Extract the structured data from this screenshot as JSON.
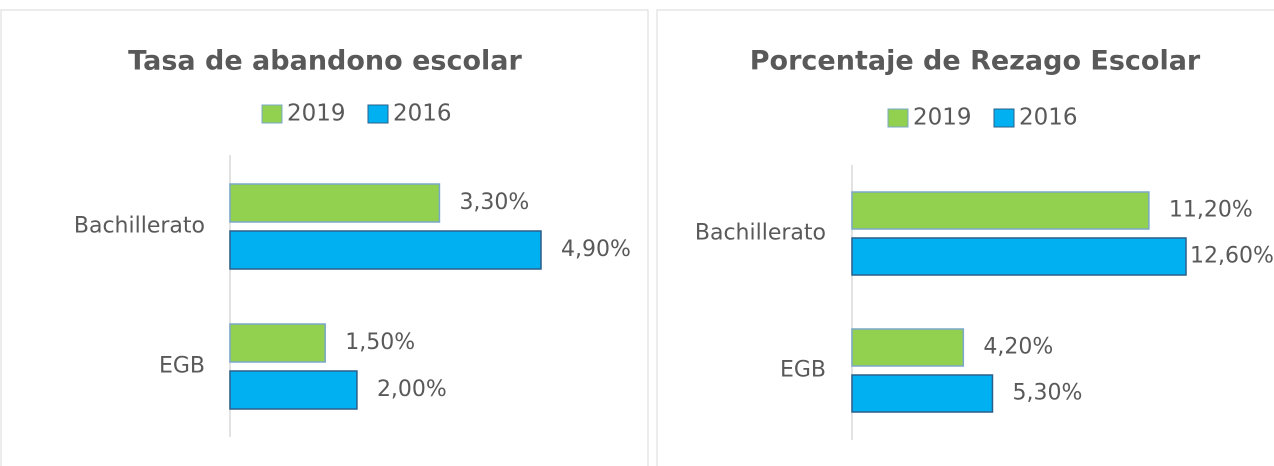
{
  "chart_data": [
    {
      "type": "bar",
      "orientation": "horizontal",
      "title": "Tasa de abandono escolar",
      "categories": [
        "Bachillerato",
        "EGB"
      ],
      "series": [
        {
          "name": "2019",
          "color": "#92d050",
          "values": [
            3.3,
            1.5
          ],
          "value_labels": [
            "3,30%",
            "1,50%"
          ]
        },
        {
          "name": "2016",
          "color": "#00b0f0",
          "values": [
            4.9,
            2.0
          ],
          "value_labels": [
            "4,90%",
            "2,00%"
          ]
        }
      ]
    },
    {
      "type": "bar",
      "orientation": "horizontal",
      "title": "Porcentaje de Rezago Escolar",
      "categories": [
        "Bachillerato",
        "EGB"
      ],
      "series": [
        {
          "name": "2019",
          "color": "#92d050",
          "values": [
            11.2,
            4.2
          ],
          "value_labels": [
            "11,20%",
            "4,20%"
          ]
        },
        {
          "name": "2016",
          "color": "#00b0f0",
          "values": [
            12.6,
            5.3
          ],
          "value_labels": [
            "12,60%",
            "5,30%"
          ]
        }
      ]
    }
  ]
}
